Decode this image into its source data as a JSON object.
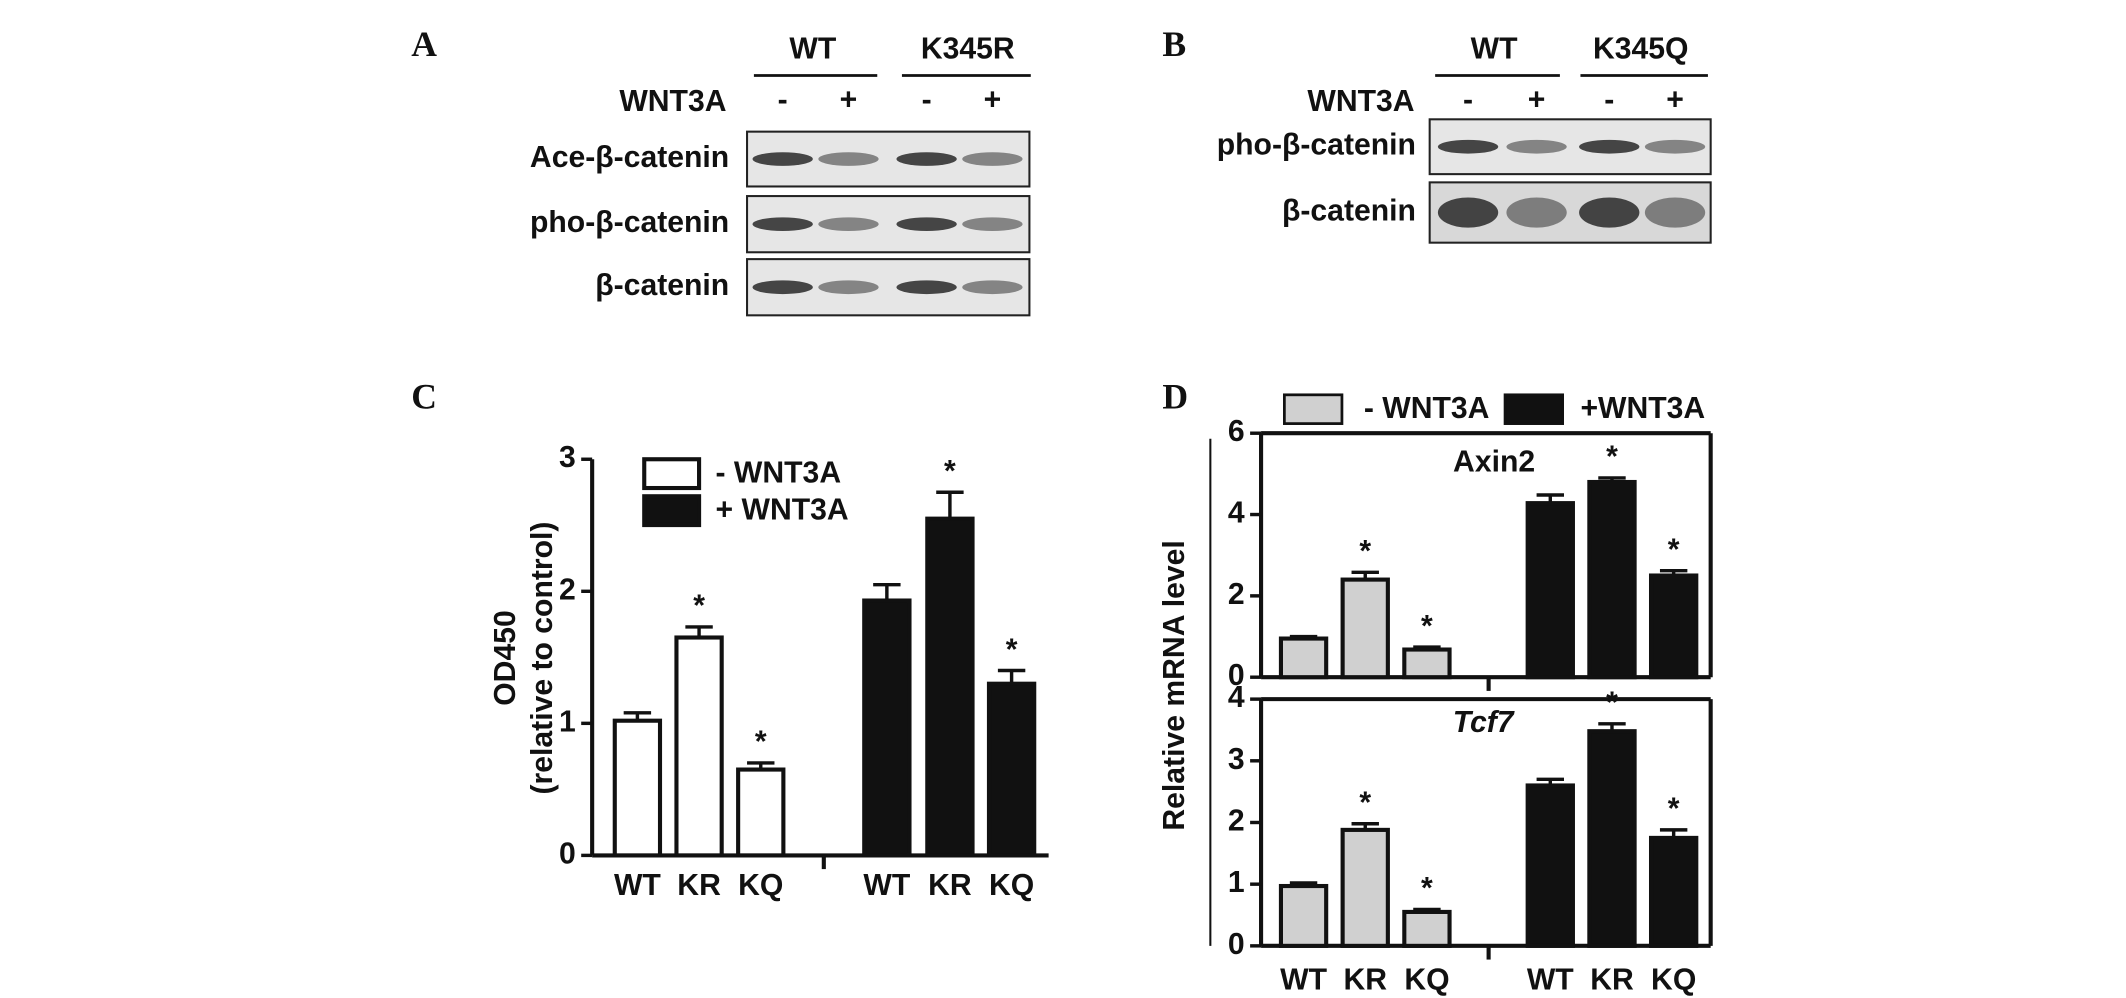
{
  "blots": [
    {
      "label": "A",
      "groups": [
        "WT",
        "K345R"
      ],
      "treatment": "WNT3A",
      "signs": [
        "-",
        "+",
        "-",
        "+"
      ],
      "rows": [
        "Ace-β-catenin",
        "pho-β-catenin",
        "β-catenin"
      ]
    },
    {
      "label": "B",
      "groups": [
        "WT",
        "K345Q"
      ],
      "treatment": "WNT3A",
      "signs": [
        "-",
        "+",
        "-",
        "+"
      ],
      "rows": [
        "pho-β-catenin",
        "β-catenin"
      ]
    }
  ],
  "chart_data": [
    {
      "type": "bar",
      "panel": "C",
      "ylabel": [
        "OD450",
        "(relative to control)"
      ],
      "categories": [
        "WT",
        "KR",
        "KQ"
      ],
      "ylim": [
        0,
        3
      ],
      "yticks": [
        0,
        1,
        2,
        3
      ],
      "series": [
        {
          "name": "-  WNT3A",
          "color": "#ffffff",
          "values": [
            1.02,
            1.65,
            0.65
          ],
          "errors": [
            0.06,
            0.08,
            0.05
          ],
          "significance": [
            null,
            "*",
            "*"
          ]
        },
        {
          "name": "+ WNT3A",
          "color": "#111111",
          "values": [
            1.93,
            2.55,
            1.3
          ],
          "errors": [
            0.12,
            0.2,
            0.1
          ],
          "significance": [
            null,
            "*",
            "*"
          ]
        }
      ]
    },
    {
      "type": "bar",
      "panel": "D",
      "title": "Axin2",
      "ylabel": "Relative mRNA level",
      "categories": [
        "WT",
        "KR",
        "KQ"
      ],
      "ylim": [
        0,
        6
      ],
      "yticks": [
        0,
        2,
        4,
        6
      ],
      "series": [
        {
          "name": "- WNT3A",
          "color": "#d0d0d0",
          "values": [
            0.95,
            2.4,
            0.68
          ],
          "errors": [
            0.05,
            0.18,
            0.06
          ],
          "significance": [
            null,
            "*",
            "*"
          ]
        },
        {
          "name": "+WNT3A",
          "color": "#111111",
          "values": [
            4.28,
            4.8,
            2.5
          ],
          "errors": [
            0.2,
            0.1,
            0.12
          ],
          "significance": [
            null,
            "*",
            "*"
          ]
        }
      ]
    },
    {
      "type": "bar",
      "title": "Tcf7",
      "categories": [
        "WT",
        "KR",
        "KQ"
      ],
      "ylim": [
        0,
        4
      ],
      "yticks": [
        0,
        1,
        2,
        3,
        4
      ],
      "series": [
        {
          "color": "#d0d0d0",
          "values": [
            0.97,
            1.88,
            0.55
          ],
          "errors": [
            0.05,
            0.1,
            0.04
          ],
          "significance": [
            null,
            "*",
            "*"
          ]
        },
        {
          "color": "#111111",
          "values": [
            2.6,
            3.48,
            1.75
          ],
          "errors": [
            0.1,
            0.12,
            0.13
          ],
          "significance": [
            null,
            "*",
            "*"
          ]
        }
      ]
    }
  ]
}
